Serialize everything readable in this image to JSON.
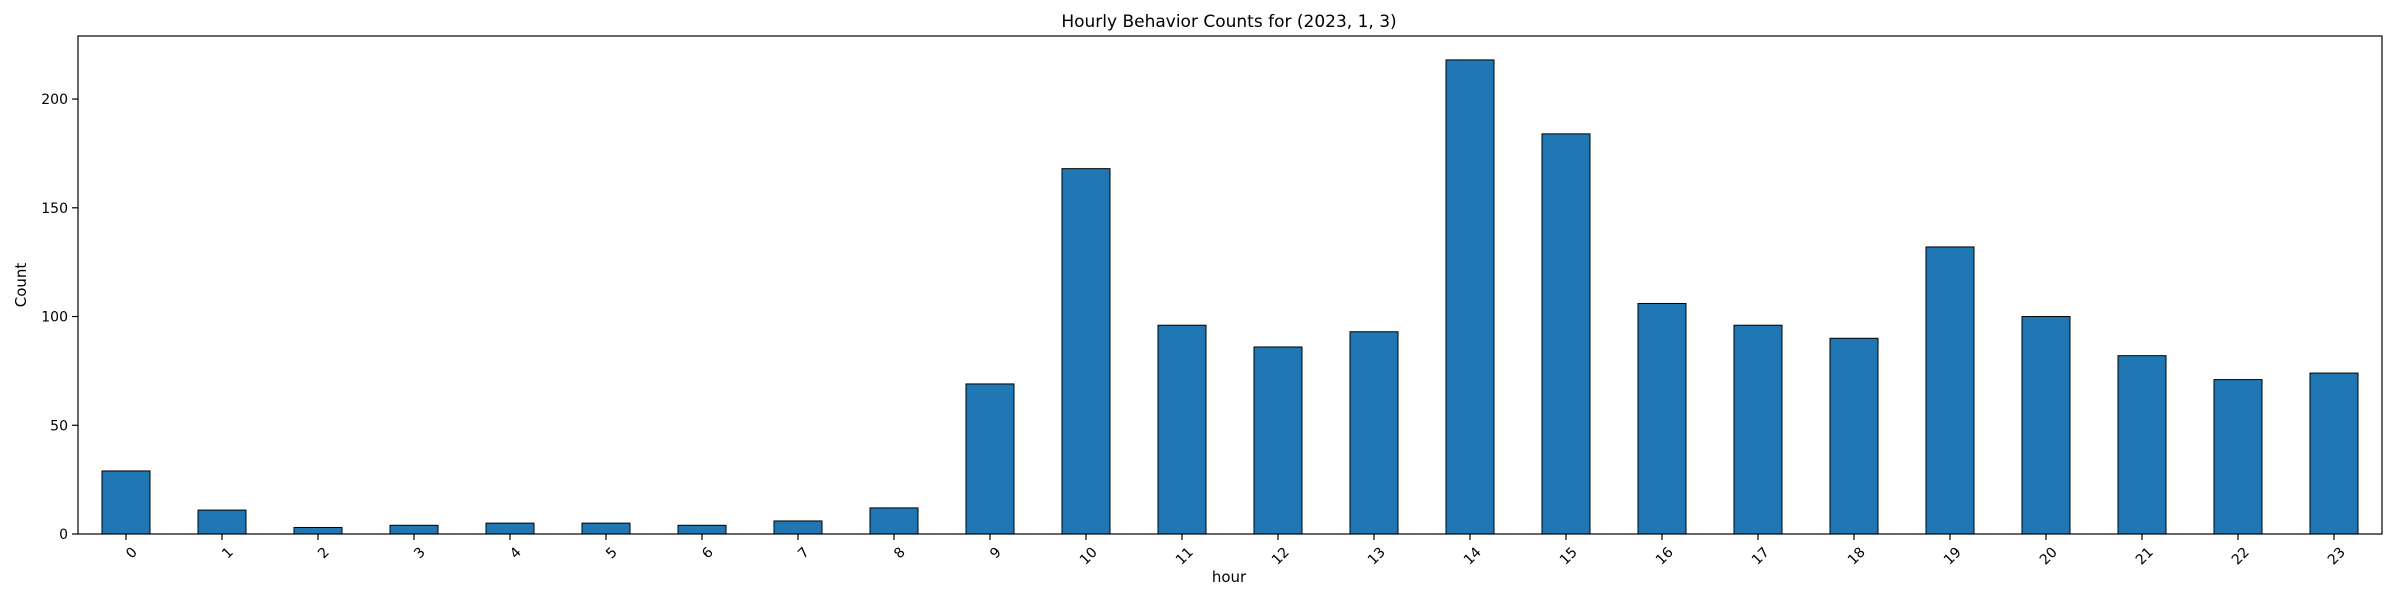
{
  "chart_data": {
    "type": "bar",
    "title": "Hourly Behavior Counts for (2023, 1, 3)",
    "xlabel": "hour",
    "ylabel": "Count",
    "categories": [
      "0",
      "1",
      "2",
      "3",
      "4",
      "5",
      "6",
      "7",
      "8",
      "9",
      "10",
      "11",
      "12",
      "13",
      "14",
      "15",
      "16",
      "17",
      "18",
      "19",
      "20",
      "21",
      "22",
      "23"
    ],
    "values": [
      29,
      11,
      3,
      4,
      5,
      5,
      4,
      6,
      12,
      69,
      168,
      96,
      86,
      93,
      218,
      184,
      106,
      96,
      90,
      132,
      100,
      82,
      71,
      74
    ],
    "ylim": [
      0,
      229
    ],
    "yticks": [
      0,
      50,
      100,
      150,
      200
    ],
    "bar_color": "#1f77b4",
    "grid": false,
    "legend": "none"
  }
}
